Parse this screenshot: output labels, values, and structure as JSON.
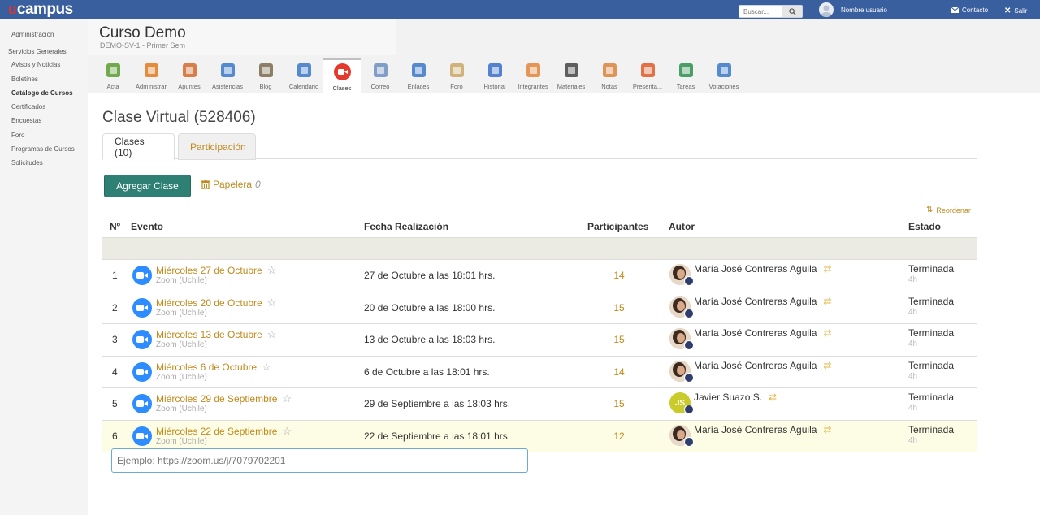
{
  "topbar": {
    "logo_mark": "u",
    "logo_text": "campus",
    "search_placeholder": "Buscar...",
    "user_name": "Nombre usuario",
    "contacto": "Contacto",
    "salir": "Salir"
  },
  "sidebar": {
    "admin": "Administración",
    "group": "Servicios Generales",
    "items": [
      "Avisos y Noticias",
      "Boletines",
      "Catálogo de Cursos",
      "Certificados",
      "Encuestas",
      "Foro",
      "Programas de Cursos",
      "Solicitudes"
    ]
  },
  "course": {
    "title": "Curso Demo",
    "subtitle": "DEMO-SV-1 - Primer Sem"
  },
  "tools": [
    {
      "label": "Acta",
      "icon": "acta-icon"
    },
    {
      "label": "Administrar",
      "icon": "gears-icon"
    },
    {
      "label": "Apuntes",
      "icon": "notes-icon"
    },
    {
      "label": "Asistencias",
      "icon": "attendance-icon"
    },
    {
      "label": "Blog",
      "icon": "blog-icon"
    },
    {
      "label": "Calendario",
      "icon": "calendar-icon"
    },
    {
      "label": "Clases",
      "icon": "video-icon"
    },
    {
      "label": "Correo",
      "icon": "mail-icon"
    },
    {
      "label": "Enlaces",
      "icon": "links-icon"
    },
    {
      "label": "Foro",
      "icon": "forum-icon"
    },
    {
      "label": "Historial",
      "icon": "history-icon"
    },
    {
      "label": "Integrantes",
      "icon": "members-icon"
    },
    {
      "label": "Materiales",
      "icon": "materials-icon"
    },
    {
      "label": "Notas",
      "icon": "grades-icon"
    },
    {
      "label": "Presenta...",
      "icon": "presentation-icon"
    },
    {
      "label": "Tareas",
      "icon": "tasks-icon"
    },
    {
      "label": "Votaciones",
      "icon": "vote-icon"
    }
  ],
  "page": {
    "title": "Clase Virtual (528406)",
    "tab_clases": "Clases (10)",
    "tab_participacion": "Participación",
    "add_button": "Agregar Clase",
    "papelera": "Papelera",
    "papelera_count": "0",
    "reordenar": "Reordenar"
  },
  "table": {
    "headers": {
      "num": "Nº",
      "evento": "Evento",
      "fecha": "Fecha Realización",
      "participantes": "Participantes",
      "autor": "Autor",
      "estado": "Estado"
    },
    "rows": [
      {
        "num": "1",
        "evento": "Miércoles 27 de Octubre",
        "sub": "Zoom (Uchile)",
        "fecha": "27 de Octubre a las 18:01 hrs.",
        "participantes": "14",
        "autor": "María José Contreras Aguila",
        "estado": "Terminada",
        "estado_sub": "4h"
      },
      {
        "num": "2",
        "evento": "Miércoles 20 de Octubre",
        "sub": "Zoom (Uchile)",
        "fecha": "20 de Octubre a las 18:00 hrs.",
        "participantes": "15",
        "autor": "María José Contreras Aguila",
        "estado": "Terminada",
        "estado_sub": "4h"
      },
      {
        "num": "3",
        "evento": "Miércoles 13 de Octubre",
        "sub": "Zoom (Uchile)",
        "fecha": "13 de Octubre a las 18:03 hrs.",
        "participantes": "15",
        "autor": "María José Contreras Aguila",
        "estado": "Terminada",
        "estado_sub": "4h"
      },
      {
        "num": "4",
        "evento": "Miércoles 6 de Octubre",
        "sub": "Zoom (Uchile)",
        "fecha": "6 de Octubre a las 18:01 hrs.",
        "participantes": "14",
        "autor": "María José Contreras Aguila",
        "estado": "Terminada",
        "estado_sub": "4h"
      },
      {
        "num": "5",
        "evento": "Miércoles 29 de Septiembre",
        "sub": "Zoom (Uchile)",
        "fecha": "29 de Septiembre a las 18:03 hrs.",
        "participantes": "15",
        "autor": "Javier Suazo S.",
        "autor_initials": "JS",
        "estado": "Terminada",
        "estado_sub": "4h"
      },
      {
        "num": "6",
        "evento": "Miércoles 22 de Septiembre",
        "sub": "Zoom (Uchile)",
        "fecha": "22 de Septiembre a las 18:01 hrs.",
        "participantes": "12",
        "autor": "María José Contreras Aguila",
        "estado": "Terminada",
        "estado_sub": "4h"
      }
    ]
  },
  "zoom_input_placeholder": "Ejemplo: https://zoom.us/j/7079702201",
  "colors": {
    "topbar": "#3a5f9e",
    "link": "#c08a1e",
    "button": "#2e7f74",
    "zoom": "#2d8cff",
    "highlight": "#fdfde5"
  }
}
